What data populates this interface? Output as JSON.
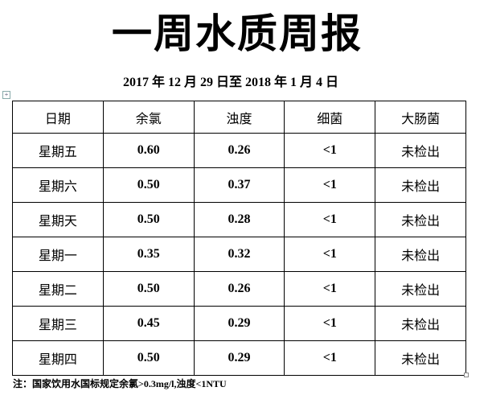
{
  "header": {
    "title": "一周水质周报",
    "subtitle": "2017 年 12 月 29 日至 2018 年 1 月 4 日"
  },
  "table": {
    "columns": [
      "日期",
      "余氯",
      "浊度",
      "细菌",
      "大肠菌"
    ],
    "rows": [
      [
        "星期五",
        "0.60",
        "0.26",
        "<1",
        "未检出"
      ],
      [
        "星期六",
        "0.50",
        "0.37",
        "<1",
        "未检出"
      ],
      [
        "星期天",
        "0.50",
        "0.28",
        "<1",
        "未检出"
      ],
      [
        "星期一",
        "0.35",
        "0.32",
        "<1",
        "未检出"
      ],
      [
        "星期二",
        "0.50",
        "0.26",
        "<1",
        "未检出"
      ],
      [
        "星期三",
        "0.45",
        "0.29",
        "<1",
        "未检出"
      ],
      [
        "星期四",
        "0.50",
        "0.29",
        "<1",
        "未检出"
      ]
    ]
  },
  "footer": {
    "note": "注：国家饮用水国标规定余氯>0.3mg/l,浊度<1NTU"
  }
}
